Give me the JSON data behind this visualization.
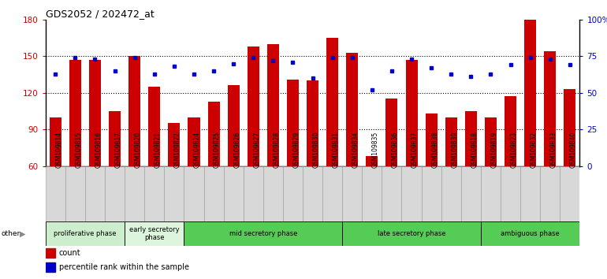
{
  "title": "GDS2052 / 202472_at",
  "samples": [
    "GSM109814",
    "GSM109815",
    "GSM109816",
    "GSM109817",
    "GSM109820",
    "GSM109821",
    "GSM109822",
    "GSM109824",
    "GSM109825",
    "GSM109826",
    "GSM109827",
    "GSM109828",
    "GSM109829",
    "GSM109830",
    "GSM109831",
    "GSM109834",
    "GSM109835",
    "GSM109836",
    "GSM109837",
    "GSM109838",
    "GSM109839",
    "GSM109818",
    "GSM109819",
    "GSM109823",
    "GSM109832",
    "GSM109833",
    "GSM109840"
  ],
  "counts": [
    100,
    147,
    147,
    105,
    150,
    125,
    95,
    100,
    113,
    126,
    158,
    160,
    131,
    130,
    165,
    153,
    68,
    115,
    147,
    103,
    100,
    105,
    100,
    117,
    180,
    154,
    123
  ],
  "percentile_ranks": [
    63,
    74,
    73,
    65,
    74,
    63,
    68,
    63,
    65,
    70,
    74,
    72,
    71,
    60,
    74,
    74,
    52,
    65,
    73,
    67,
    63,
    61,
    63,
    69,
    74,
    73,
    69
  ],
  "bar_color": "#cc0000",
  "dot_color": "#0000cc",
  "ylim_left": [
    60,
    180
  ],
  "ylim_right": [
    0,
    100
  ],
  "yticks_left": [
    60,
    90,
    120,
    150,
    180
  ],
  "yticks_right": [
    0,
    25,
    50,
    75,
    100
  ],
  "ytick_labels_right": [
    "0",
    "25",
    "50",
    "75",
    "100%"
  ],
  "phases": [
    {
      "label": "proliferative phase",
      "start": 0,
      "end": 4,
      "color": "#cceecc"
    },
    {
      "label": "early secretory\nphase",
      "start": 4,
      "end": 7,
      "color": "#ddf5dd"
    },
    {
      "label": "mid secretory phase",
      "start": 7,
      "end": 15,
      "color": "#66cc66"
    },
    {
      "label": "late secretory phase",
      "start": 15,
      "end": 22,
      "color": "#66cc66"
    },
    {
      "label": "ambiguous phase",
      "start": 22,
      "end": 27,
      "color": "#66cc66"
    }
  ],
  "xlabel_color": "#cc0000",
  "right_axis_color": "#0000cc"
}
